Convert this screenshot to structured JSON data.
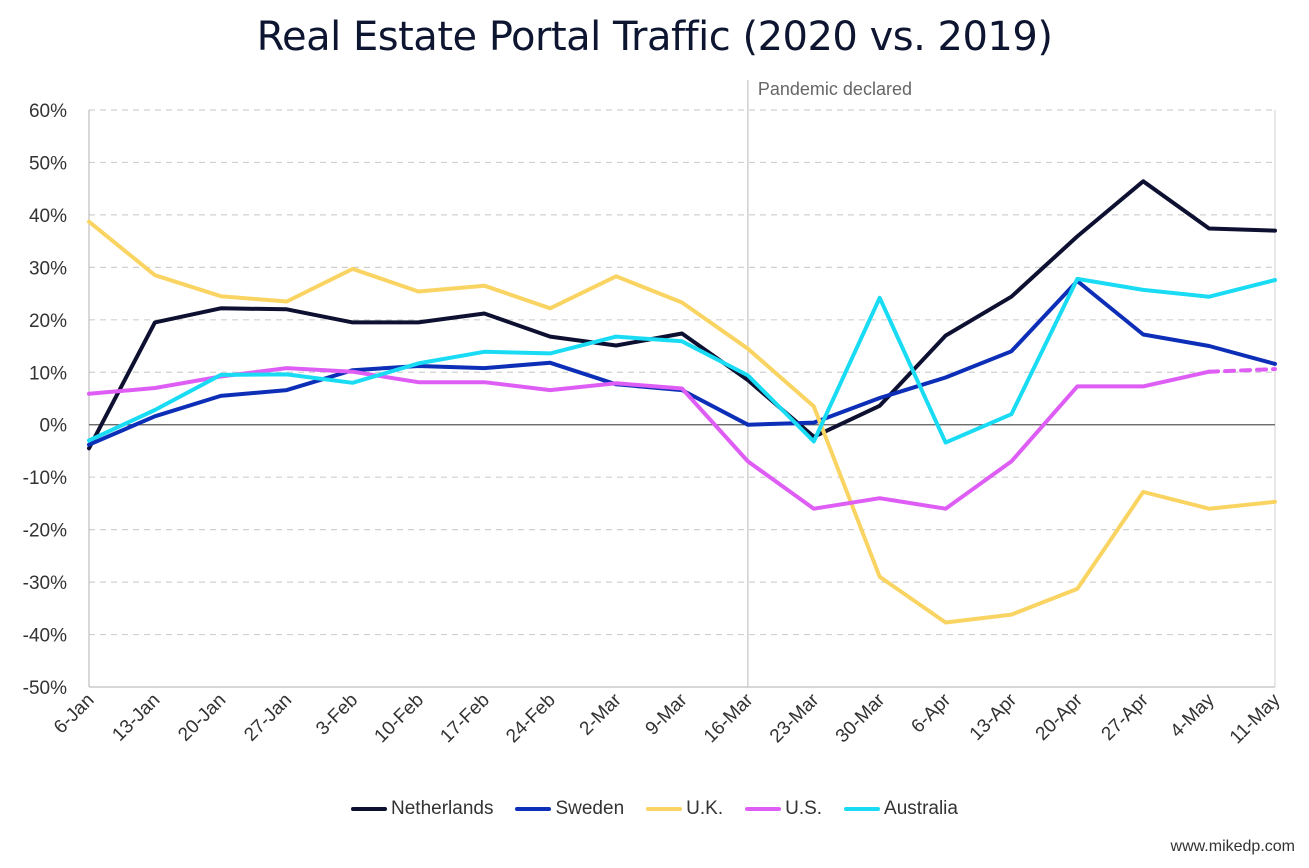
{
  "chart_data": {
    "type": "line",
    "title": "Real Estate Portal Traffic (2020 vs. 2019)",
    "xlabel": "",
    "ylabel": "",
    "ylim": [
      -50,
      60
    ],
    "y_ticks": [
      60,
      50,
      40,
      30,
      20,
      10,
      0,
      -10,
      -20,
      -30,
      -40,
      -50
    ],
    "y_tick_labels": [
      "60%",
      "50%",
      "40%",
      "30%",
      "20%",
      "10%",
      "0%",
      "-10%",
      "-20%",
      "-30%",
      "-40%",
      "-50%"
    ],
    "categories": [
      "6-Jan",
      "13-Jan",
      "20-Jan",
      "27-Jan",
      "3-Feb",
      "10-Feb",
      "17-Feb",
      "24-Feb",
      "2-Mar",
      "9-Mar",
      "16-Mar",
      "23-Mar",
      "30-Mar",
      "6-Apr",
      "13-Apr",
      "20-Apr",
      "27-Apr",
      "4-May",
      "11-May"
    ],
    "annotation": {
      "label": "Pandemic declared",
      "category": "16-Mar"
    },
    "series": [
      {
        "name": "Netherlands",
        "color": "#0d1030",
        "values": [
          -4.5,
          19.5,
          22.2,
          22.0,
          19.5,
          19.5,
          21.2,
          16.8,
          15.1,
          17.4,
          8.5,
          -2.3,
          3.6,
          17.0,
          24.4,
          35.9,
          46.4,
          37.4,
          37.0
        ]
      },
      {
        "name": "Sweden",
        "color": "#0d2fb8",
        "values": [
          -3.8,
          1.6,
          5.5,
          6.6,
          10.4,
          11.2,
          10.8,
          11.8,
          7.7,
          6.6,
          0.0,
          0.4,
          5.1,
          9.0,
          14.0,
          27.4,
          17.2,
          15.0,
          11.6
        ]
      },
      {
        "name": "U.K.",
        "color": "#fad463",
        "values": [
          38.7,
          28.5,
          24.5,
          23.5,
          29.7,
          25.4,
          26.5,
          22.2,
          28.3,
          23.3,
          14.5,
          3.5,
          -29.0,
          -37.7,
          -36.2,
          -31.3,
          -12.8,
          -16.0,
          -14.7
        ]
      },
      {
        "name": "U.S.",
        "color": "#de5ef5",
        "values": [
          5.9,
          7.0,
          9.2,
          10.8,
          10.1,
          8.1,
          8.1,
          6.6,
          7.9,
          6.9,
          -7.0,
          -16.0,
          -14.0,
          -16.0,
          -7.0,
          7.3,
          7.3,
          10.1,
          10.6
        ],
        "dashed_from_index": 17
      },
      {
        "name": "Australia",
        "color": "#19dcf4",
        "values": [
          -3.0,
          2.8,
          9.5,
          9.6,
          8.0,
          11.7,
          13.9,
          13.6,
          16.8,
          15.9,
          9.4,
          -3.2,
          24.2,
          -3.4,
          2.0,
          27.8,
          25.7,
          24.4,
          27.6
        ]
      }
    ]
  },
  "watermark": "www.mikedp.com"
}
